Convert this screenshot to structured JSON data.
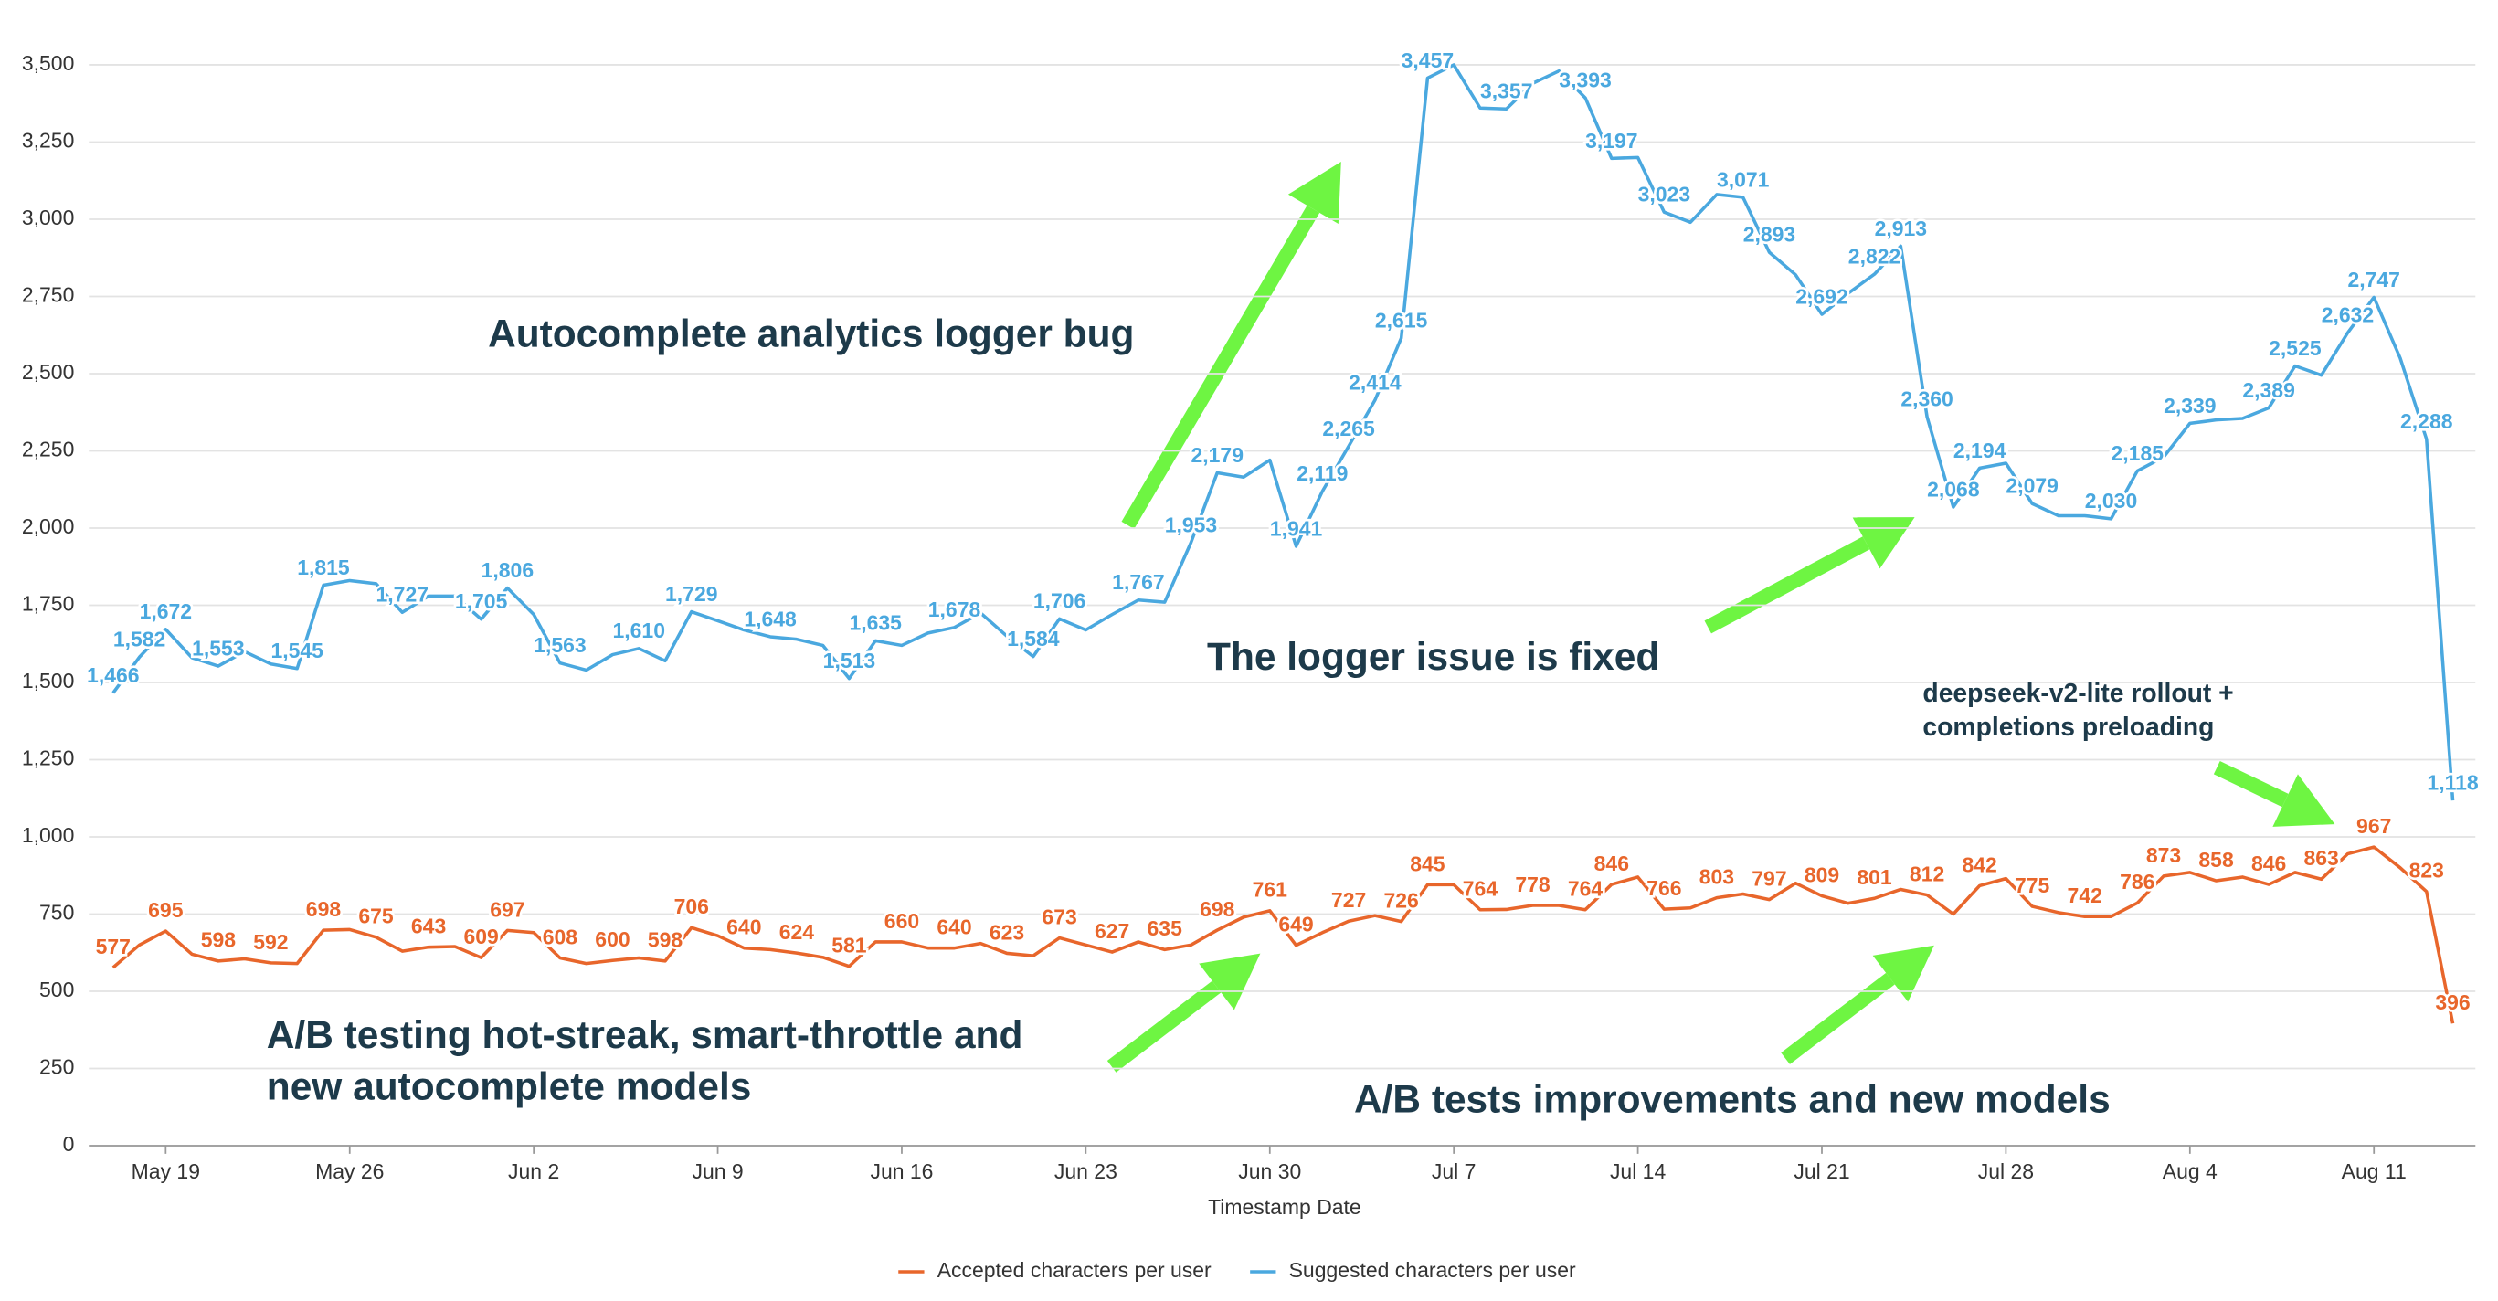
{
  "chart_data": {
    "type": "line",
    "x_label": "Timestamp Date",
    "categories": [
      null,
      null,
      "May 19",
      null,
      null,
      null,
      null,
      null,
      null,
      "May 26",
      null,
      null,
      null,
      null,
      null,
      null,
      "Jun 2",
      null,
      null,
      null,
      null,
      null,
      null,
      "Jun 9",
      null,
      null,
      null,
      null,
      null,
      null,
      "Jun 16",
      null,
      null,
      null,
      null,
      null,
      null,
      "Jun 23",
      null,
      null,
      null,
      null,
      null,
      null,
      "Jun 30",
      null,
      null,
      null,
      null,
      null,
      null,
      "Jul 7",
      null,
      null,
      null,
      null,
      null,
      null,
      "Jul 14",
      null,
      null,
      null,
      null,
      null,
      null,
      "Jul 21",
      null,
      null,
      null,
      null,
      null,
      null,
      "Jul 28",
      null,
      null,
      null,
      null,
      null,
      null,
      "Aug 4",
      null,
      null,
      null,
      null,
      null,
      null,
      "Aug 11",
      null,
      null,
      null
    ],
    "ylim": [
      0,
      3500
    ],
    "yticks": [
      0,
      250,
      500,
      750,
      {
        "value": 1000,
        "label": "1,000"
      },
      {
        "value": 1250,
        "label": "1,250"
      },
      {
        "value": 1500,
        "label": "1,500"
      },
      {
        "value": 1750,
        "label": "1,750"
      },
      {
        "value": 2000,
        "label": "2,000"
      },
      {
        "value": 2250,
        "label": "2,250"
      },
      {
        "value": 2500,
        "label": "2,500"
      },
      {
        "value": 2750,
        "label": "2,750"
      },
      {
        "value": 3000,
        "label": "3,000"
      },
      {
        "value": 3250,
        "label": "3,250"
      },
      {
        "value": 3500,
        "label": "3,500"
      }
    ],
    "grid": true,
    "legend": "bottom",
    "series": [
      {
        "name": "Accepted characters per user",
        "color": "#e8662b",
        "values": [
          577,
          650,
          695,
          620,
          598,
          605,
          592,
          590,
          698,
          700,
          675,
          630,
          643,
          645,
          609,
          697,
          690,
          608,
          590,
          600,
          608,
          598,
          706,
          680,
          640,
          635,
          624,
          610,
          581,
          660,
          660,
          640,
          640,
          655,
          623,
          615,
          673,
          650,
          627,
          660,
          635,
          650,
          698,
          740,
          761,
          649,
          690,
          727,
          745,
          726,
          845,
          845,
          764,
          765,
          778,
          778,
          764,
          846,
          870,
          766,
          770,
          803,
          815,
          797,
          850,
          809,
          785,
          801,
          830,
          812,
          750,
          842,
          865,
          775,
          755,
          742,
          742,
          786,
          873,
          885,
          858,
          870,
          846,
          885,
          863,
          945,
          967,
          900,
          823,
          396
        ],
        "value_labels": [
          "577",
          null,
          "695",
          null,
          "598",
          null,
          "592",
          null,
          "698",
          null,
          "675",
          null,
          "643",
          null,
          "609",
          "697",
          null,
          "608",
          null,
          "600",
          null,
          "598",
          "706",
          null,
          "640",
          null,
          "624",
          null,
          "581",
          null,
          "660",
          null,
          "640",
          null,
          "623",
          null,
          "673",
          null,
          "627",
          null,
          "635",
          null,
          "698",
          null,
          "761",
          "649",
          null,
          "727",
          null,
          "726",
          "845",
          null,
          "764",
          null,
          "778",
          null,
          "764",
          "846",
          null,
          "766",
          null,
          "803",
          null,
          "797",
          null,
          "809",
          null,
          "801",
          null,
          "812",
          null,
          "842",
          null,
          "775",
          null,
          "742",
          null,
          "786",
          "873",
          null,
          "858",
          null,
          "846",
          null,
          "863",
          null,
          "967",
          null,
          "823",
          "396"
        ]
      },
      {
        "name": "Suggested characters per user",
        "color": "#4aa8df",
        "values": [
          1466,
          1582,
          1672,
          1580,
          1553,
          1600,
          1560,
          1545,
          1815,
          1830,
          1820,
          1727,
          1780,
          1780,
          1705,
          1806,
          1720,
          1563,
          1540,
          1590,
          1610,
          1570,
          1729,
          1700,
          1670,
          1648,
          1640,
          1620,
          1513,
          1635,
          1620,
          1660,
          1678,
          1725,
          1650,
          1584,
          1706,
          1670,
          1720,
          1767,
          1760,
          1953,
          2179,
          2165,
          2220,
          1941,
          2119,
          2265,
          2414,
          2615,
          3457,
          3500,
          3360,
          3357,
          3440,
          3480,
          3393,
          3197,
          3200,
          3023,
          2990,
          3080,
          3071,
          2893,
          2820,
          2692,
          2760,
          2822,
          2913,
          2360,
          2068,
          2194,
          2210,
          2079,
          2040,
          2040,
          2030,
          2185,
          2230,
          2339,
          2350,
          2355,
          2389,
          2525,
          2495,
          2632,
          2747,
          2550,
          2288,
          1118
        ],
        "value_labels": [
          "1,466",
          "1,582",
          "1,672",
          null,
          "1,553",
          null,
          null,
          "1,545",
          "1,815",
          null,
          null,
          "1,727",
          null,
          null,
          "1,705",
          "1,806",
          null,
          "1,563",
          null,
          null,
          "1,610",
          null,
          "1,729",
          null,
          null,
          "1,648",
          null,
          null,
          "1,513",
          "1,635",
          null,
          null,
          "1,678",
          null,
          null,
          "1,584",
          "1,706",
          null,
          null,
          "1,767",
          null,
          "1,953",
          "2,179",
          null,
          null,
          "1,941",
          "2,119",
          "2,265",
          "2,414",
          "2,615",
          "3,457",
          null,
          null,
          "3,357",
          null,
          null,
          "3,393",
          "3,197",
          null,
          "3,023",
          null,
          null,
          "3,071",
          "2,893",
          null,
          "2,692",
          null,
          "2,822",
          "2,913",
          "2,360",
          "2,068",
          "2,194",
          null,
          "2,079",
          null,
          null,
          "2,030",
          "2,185",
          null,
          "2,339",
          null,
          null,
          "2,389",
          "2,525",
          null,
          "2,632",
          "2,747",
          null,
          "2,288",
          "1,118"
        ]
      }
    ],
    "annotations": [
      [
        "Autocomplete analytics logger bug"
      ],
      [
        "The logger issue is fixed"
      ],
      [
        "deepseek-v2-lite rollout +",
        "completions preloading"
      ],
      [
        "A/B testing hot-streak, smart-throttle and",
        "new autocomplete models"
      ],
      [
        "A/B tests improvements and new models"
      ]
    ]
  }
}
